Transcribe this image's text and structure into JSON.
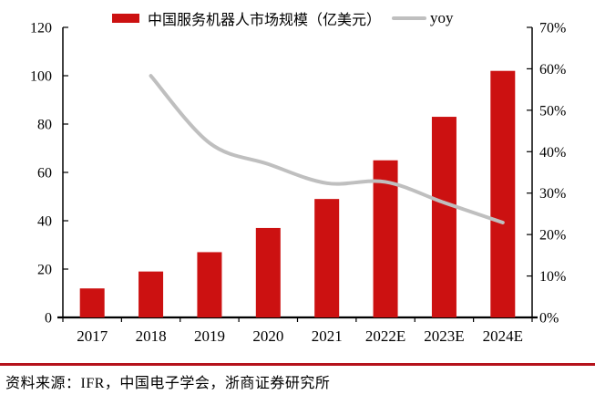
{
  "legend": {
    "bar_label": "中国服务机器人市场规模（亿美元）",
    "line_label": "yoy"
  },
  "footer": {
    "source": "资料来源：IFR，中国电子学会，浙商证券研究所"
  },
  "colors": {
    "bar": "#CC1111",
    "line": "#BFBFBF",
    "axis": "#000000",
    "text": "#000000",
    "footer_rule": "#B5121B",
    "background": "#FFFFFF"
  },
  "chart_data": {
    "type": "bar",
    "title": "",
    "categories": [
      "2017",
      "2018",
      "2019",
      "2020",
      "2021",
      "2022E",
      "2023E",
      "2024E"
    ],
    "series": [
      {
        "name": "中国服务机器人市场规模（亿美元）",
        "type": "bar",
        "axis": "left",
        "color": "#CC1111",
        "values": [
          12,
          19,
          27,
          37,
          49,
          65,
          83,
          102
        ]
      },
      {
        "name": "yoy",
        "type": "line",
        "axis": "right",
        "color": "#BFBFBF",
        "unit": "%",
        "values": [
          null,
          58.3,
          42.1,
          37.0,
          32.4,
          32.7,
          27.7,
          22.9
        ]
      }
    ],
    "left_axis": {
      "min": 0,
      "max": 120,
      "step": 20,
      "tick_labels": [
        "0",
        "20",
        "40",
        "60",
        "80",
        "100",
        "120"
      ]
    },
    "right_axis": {
      "min": 0,
      "max": 70,
      "step": 10,
      "tick_labels": [
        "0%",
        "10%",
        "20%",
        "30%",
        "40%",
        "50%",
        "60%",
        "70%"
      ]
    },
    "grid": false,
    "legend_position": "top"
  }
}
